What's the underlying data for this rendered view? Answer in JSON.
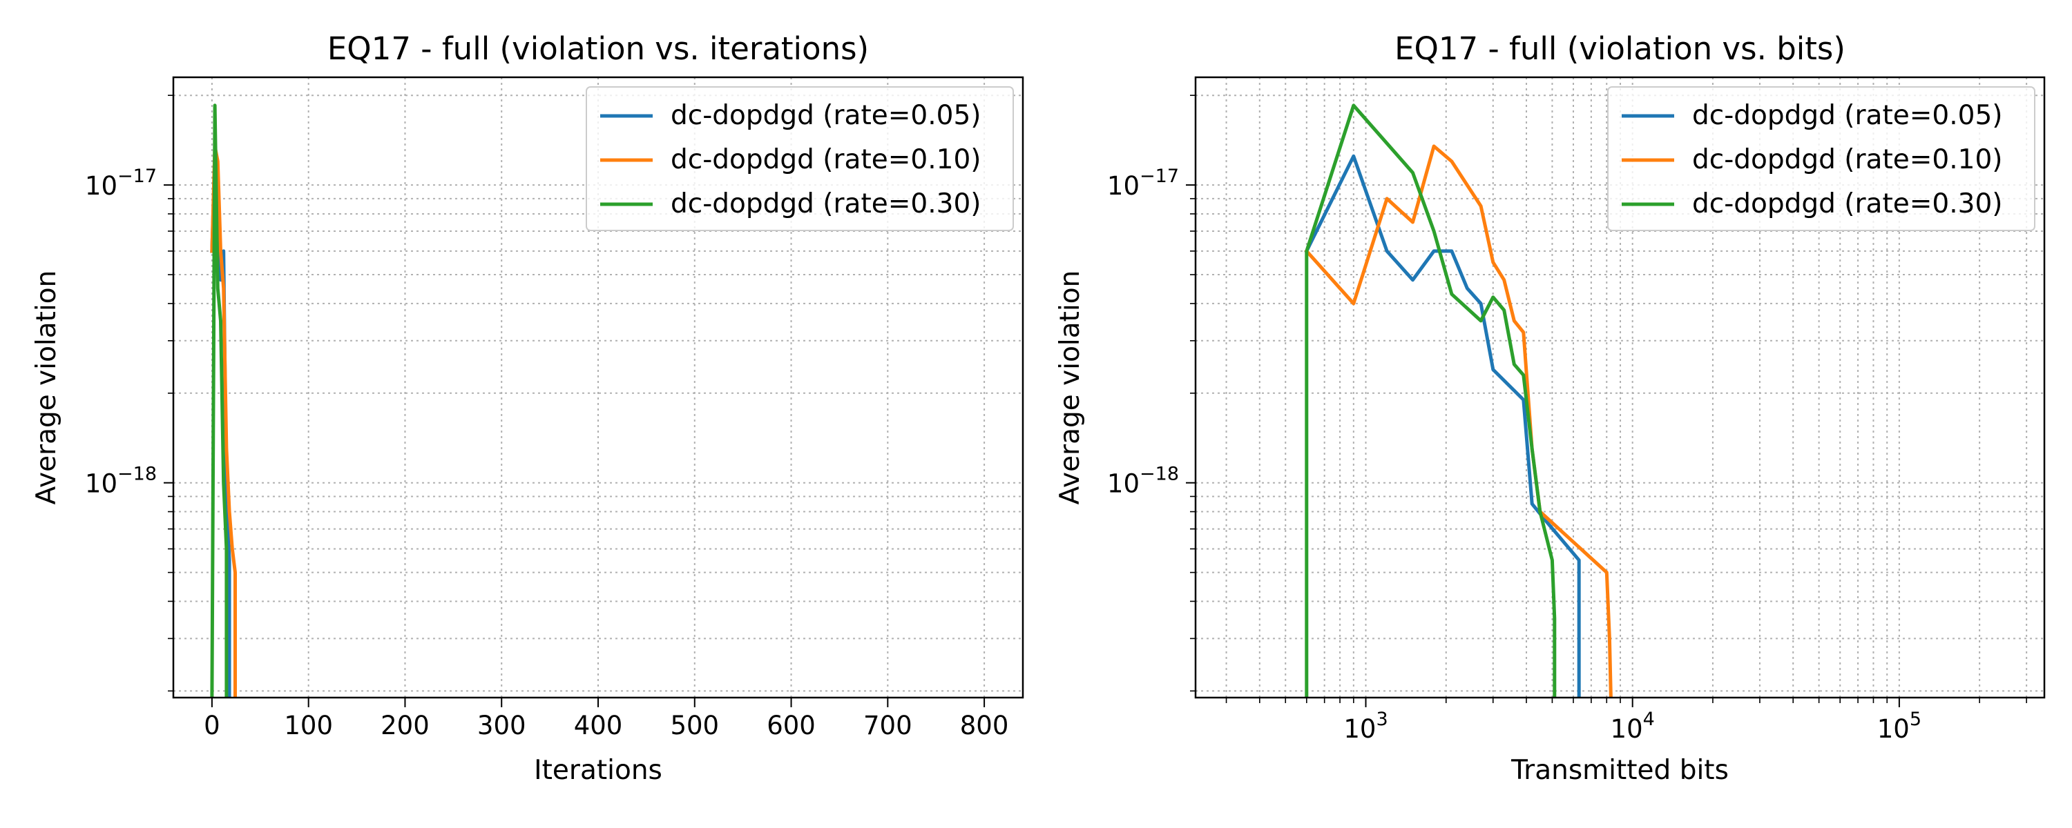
{
  "chart_data": [
    {
      "type": "line",
      "title": "EQ17 - full (violation vs. iterations)",
      "xlabel": "Iterations",
      "ylabel": "Average violation",
      "xscale": "linear",
      "yscale": "log",
      "xlim": [
        -40,
        840
      ],
      "ylim": [
        1.9e-19,
        2.3e-17
      ],
      "xticks": [
        0,
        100,
        200,
        300,
        400,
        500,
        600,
        700,
        800
      ],
      "xtick_labels": [
        "0",
        "100",
        "200",
        "300",
        "400",
        "500",
        "600",
        "700",
        "800"
      ],
      "yticks": [
        {
          "value": 1e-17,
          "base": "10",
          "exp": "−17"
        },
        {
          "value": 1e-18,
          "base": "10",
          "exp": "−18"
        }
      ],
      "grid": "major and minor, dotted",
      "legend_position": "upper right",
      "series": [
        {
          "name": "dc-dopdgd (rate=0.05)",
          "color": "#1f77b4",
          "x": [
            0,
            3,
            6,
            9,
            12,
            15,
            18,
            18,
            18
          ],
          "y": [
            6e-18,
            1.25e-17,
            6e-18,
            4.8e-18,
            6e-18,
            8.5e-19,
            5.5e-19,
            3e-19,
            1.9e-19
          ]
        },
        {
          "name": "dc-dopdgd (rate=0.10)",
          "color": "#ff7f0e",
          "x": [
            0,
            3,
            6,
            9,
            12,
            15,
            18,
            21,
            24,
            24,
            24
          ],
          "y": [
            6e-18,
            1.35e-17,
            1.2e-17,
            6e-18,
            4.5e-18,
            1.3e-18,
            8e-19,
            6e-19,
            5e-19,
            3e-19,
            1.9e-19
          ]
        },
        {
          "name": "dc-dopdgd (rate=0.30)",
          "color": "#2ca02c",
          "x": [
            0,
            3,
            6,
            9,
            12,
            15,
            15,
            15
          ],
          "y": [
            1.9e-19,
            1.85e-17,
            4.5e-18,
            3.5e-18,
            1e-18,
            6e-19,
            3.5e-19,
            1.9e-19
          ]
        }
      ]
    },
    {
      "type": "line",
      "title": "EQ17 - full (violation vs. bits)",
      "xlabel": "Transmitted bits",
      "ylabel": "Average violation",
      "xscale": "log",
      "yscale": "log",
      "xlim": [
        230,
        350000
      ],
      "ylim": [
        1.9e-19,
        2.3e-17
      ],
      "xticks": [
        {
          "value": 1000,
          "base": "10",
          "exp": "3"
        },
        {
          "value": 10000,
          "base": "10",
          "exp": "4"
        },
        {
          "value": 100000,
          "base": "10",
          "exp": "5"
        }
      ],
      "yticks": [
        {
          "value": 1e-17,
          "base": "10",
          "exp": "−17"
        },
        {
          "value": 1e-18,
          "base": "10",
          "exp": "−18"
        }
      ],
      "grid": "major and minor, dotted",
      "legend_position": "upper right",
      "series": [
        {
          "name": "dc-dopdgd (rate=0.05)",
          "color": "#1f77b4",
          "x": [
            600,
            900,
            1200,
            1500,
            1800,
            2100,
            2400,
            2700,
            3000,
            3900,
            4200,
            4700,
            6300,
            6300
          ],
          "y": [
            6e-18,
            1.25e-17,
            6e-18,
            4.8e-18,
            6e-18,
            6e-18,
            4.5e-18,
            4e-18,
            2.4e-18,
            1.9e-18,
            8.5e-19,
            7.5e-19,
            5.5e-19,
            1.9e-19
          ]
        },
        {
          "name": "dc-dopdgd (rate=0.10)",
          "color": "#ff7f0e",
          "x": [
            600,
            900,
            1200,
            1500,
            1800,
            2100,
            2700,
            3000,
            3300,
            3600,
            3900,
            4200,
            4500,
            8000,
            8200,
            8300
          ],
          "y": [
            6e-18,
            4e-18,
            9e-18,
            7.5e-18,
            1.35e-17,
            1.2e-17,
            8.5e-18,
            5.5e-18,
            4.8e-18,
            3.5e-18,
            3.2e-18,
            1.3e-18,
            8e-19,
            5e-19,
            3e-19,
            1.9e-19
          ]
        },
        {
          "name": "dc-dopdgd (rate=0.30)",
          "color": "#2ca02c",
          "x": [
            600,
            600,
            900,
            1500,
            1800,
            2100,
            2700,
            3000,
            3300,
            3600,
            3900,
            4200,
            4500,
            5000,
            5100,
            5100
          ],
          "y": [
            1.9e-19,
            6e-18,
            1.85e-17,
            1.1e-17,
            7e-18,
            4.3e-18,
            3.5e-18,
            4.2e-18,
            3.8e-18,
            2.5e-18,
            2.3e-18,
            1.3e-18,
            8e-19,
            5.5e-19,
            3.5e-19,
            1.9e-19
          ]
        }
      ]
    }
  ]
}
